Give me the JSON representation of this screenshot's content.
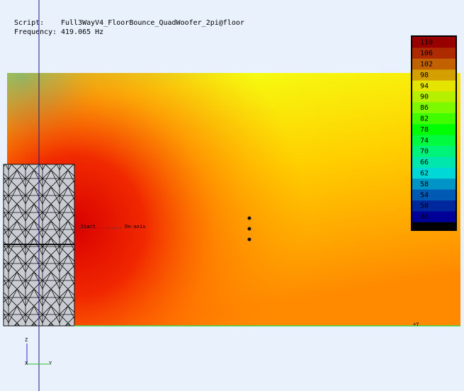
{
  "header": {
    "script_label": "Script:",
    "script": "Full3WayV4_FloorBounce_QuadWoofer_2pi@floor",
    "frequency_label": "Frequency:",
    "frequency": "419.065 Hz"
  },
  "colorbar": {
    "ticks": [
      110,
      106,
      102,
      98,
      94,
      90,
      86,
      82,
      78,
      74,
      70,
      66,
      62,
      58,
      54,
      50,
      46
    ]
  },
  "annotations": {
    "start": "Start",
    "on_axis": "On-axis",
    "plus_y": "+Y"
  },
  "triad": {
    "z": "Z",
    "x": "X",
    "y": "Y"
  }
}
